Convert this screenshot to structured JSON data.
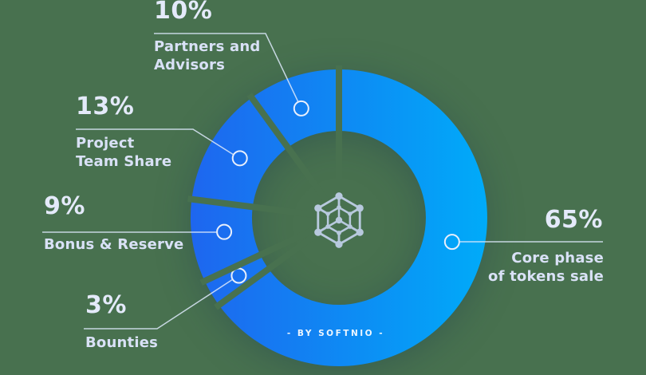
{
  "background_color": "#48714f",
  "chart_data": {
    "type": "pie",
    "variant": "donut",
    "unit": "%",
    "direction": "clockwise",
    "start_angle_deg": 0,
    "legend_position": "callouts",
    "center_brand": "- BY SOFTNIO -",
    "center_logo": "hex-network-icon",
    "slices": [
      {
        "label": "Core phase\nof tokens sale",
        "value": 65,
        "pct_label": "65%",
        "callout_angle_deg": 102,
        "callout_side": "right"
      },
      {
        "label": "Bounties",
        "value": 3,
        "pct_label": "3%",
        "callout_angle_deg": 240,
        "callout_side": "left"
      },
      {
        "label": "Bonus & Reserve",
        "value": 9,
        "pct_label": "9%",
        "callout_angle_deg": 263,
        "callout_side": "left"
      },
      {
        "label": "Project\nTeam Share",
        "value": 13,
        "pct_label": "13%",
        "callout_angle_deg": 301,
        "callout_side": "left"
      },
      {
        "label": "Partners and\nAdvisors",
        "value": 10,
        "pct_label": "10%",
        "callout_angle_deg": 341,
        "callout_side": "left"
      }
    ],
    "colors": {
      "gradient_left": "#1e66ef",
      "gradient_mid": "#0d8cf4",
      "gradient_right": "#00abf9",
      "gap": "#48714f",
      "percent_text": "#e4eafa",
      "label_text": "#d9e1f6",
      "marker_stroke": "#e8effc",
      "brand_text": "#ffffff",
      "logo": "#c8d6f2"
    }
  }
}
